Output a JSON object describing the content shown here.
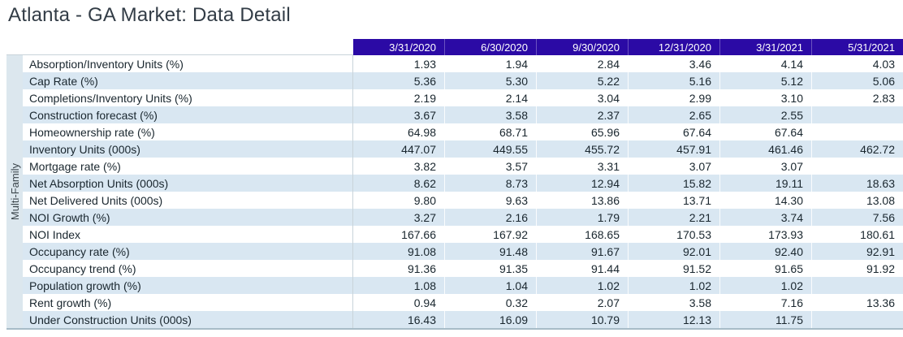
{
  "title": "Atlanta - GA Market: Data Detail",
  "colors": {
    "header_bg": "#2b0aa5",
    "header_text": "#ffffff",
    "row_stripe": "#d9e7f2",
    "category_strip_bg": "#dce7ee",
    "title_text": "#323c46",
    "body_text": "#19262e",
    "grid_line": "#c9d4da",
    "table_bottom_border": "#a7bcc7"
  },
  "chart_data": {
    "type": "table",
    "title": "Atlanta - GA Market: Data Detail",
    "row_group": "Multi-Family",
    "columns": [
      "3/31/2020",
      "6/30/2020",
      "9/30/2020",
      "12/31/2020",
      "3/31/2021",
      "5/31/2021"
    ],
    "rows": [
      {
        "label": "Absorption/Inventory Units (%)",
        "values": [
          "1.93",
          "1.94",
          "2.84",
          "3.46",
          "4.14",
          "4.03"
        ]
      },
      {
        "label": "Cap Rate (%)",
        "values": [
          "5.36",
          "5.30",
          "5.22",
          "5.16",
          "5.12",
          "5.06"
        ]
      },
      {
        "label": "Completions/Inventory Units (%)",
        "values": [
          "2.19",
          "2.14",
          "3.04",
          "2.99",
          "3.10",
          "2.83"
        ]
      },
      {
        "label": "Construction forecast (%)",
        "values": [
          "3.67",
          "3.58",
          "2.37",
          "2.65",
          "2.55",
          ""
        ]
      },
      {
        "label": "Homeownership rate (%)",
        "values": [
          "64.98",
          "68.71",
          "65.96",
          "67.64",
          "67.64",
          ""
        ]
      },
      {
        "label": "Inventory Units (000s)",
        "values": [
          "447.07",
          "449.55",
          "455.72",
          "457.91",
          "461.46",
          "462.72"
        ]
      },
      {
        "label": "Mortgage rate (%)",
        "values": [
          "3.82",
          "3.57",
          "3.31",
          "3.07",
          "3.07",
          ""
        ]
      },
      {
        "label": "Net Absorption Units (000s)",
        "values": [
          "8.62",
          "8.73",
          "12.94",
          "15.82",
          "19.11",
          "18.63"
        ]
      },
      {
        "label": "Net Delivered Units (000s)",
        "values": [
          "9.80",
          "9.63",
          "13.86",
          "13.71",
          "14.30",
          "13.08"
        ]
      },
      {
        "label": "NOI Growth (%)",
        "values": [
          "3.27",
          "2.16",
          "1.79",
          "2.21",
          "3.74",
          "7.56"
        ]
      },
      {
        "label": "NOI Index",
        "values": [
          "167.66",
          "167.92",
          "168.65",
          "170.53",
          "173.93",
          "180.61"
        ]
      },
      {
        "label": "Occupancy rate (%)",
        "values": [
          "91.08",
          "91.48",
          "91.67",
          "92.01",
          "92.40",
          "92.91"
        ]
      },
      {
        "label": "Occupancy trend (%)",
        "values": [
          "91.36",
          "91.35",
          "91.44",
          "91.52",
          "91.65",
          "91.92"
        ]
      },
      {
        "label": "Population growth (%)",
        "values": [
          "1.08",
          "1.04",
          "1.02",
          "1.02",
          "1.02",
          ""
        ]
      },
      {
        "label": "Rent growth (%)",
        "values": [
          "0.94",
          "0.32",
          "2.07",
          "3.58",
          "7.16",
          "13.36"
        ]
      },
      {
        "label": "Under Construction Units (000s)",
        "values": [
          "16.43",
          "16.09",
          "10.79",
          "12.13",
          "11.75",
          ""
        ]
      }
    ]
  }
}
